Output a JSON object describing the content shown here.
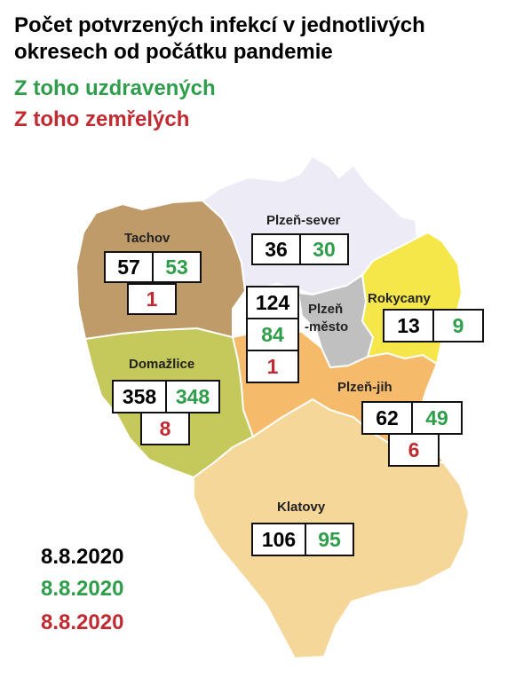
{
  "title_line1": "Počet potvrzených infekcí v jednotlivých",
  "title_line2": "okresech od počátku pandemie",
  "legend_recovered": "Z toho uzdravených",
  "legend_deaths": "Z toho zemřelých",
  "colors": {
    "confirmed": "#000000",
    "recovered": "#2e9e4b",
    "deaths": "#c12a30",
    "tachov": "#bf9b6a",
    "domazlice": "#c5c85a",
    "plzen_sever": "#ecebf6",
    "plzen_mesto": "#c0c0c0",
    "rokycany": "#f5e74a",
    "plzen_jih": "#f5bb6b",
    "klatovy": "#f6d79a"
  },
  "districts": {
    "tachov": {
      "name": "Tachov",
      "confirmed": "57",
      "recovered": "53",
      "deaths": "1"
    },
    "plzen_sever": {
      "name": "Plzeň-sever",
      "confirmed": "36",
      "recovered": "30"
    },
    "plzen_mesto": {
      "name_line1": "Plzeň",
      "name_line2": "-město",
      "confirmed": "124",
      "recovered": "84",
      "deaths": "1"
    },
    "rokycany": {
      "name": "Rokycany",
      "confirmed": "13",
      "recovered": "9"
    },
    "domazlice": {
      "name": "Domažlice",
      "confirmed": "358",
      "recovered": "348",
      "deaths": "8"
    },
    "plzen_jih": {
      "name": "Plzeň-jih",
      "confirmed": "62",
      "recovered": "49",
      "deaths": "6"
    },
    "klatovy": {
      "name": "Klatovy",
      "confirmed": "106",
      "recovered": "95"
    }
  },
  "dates": {
    "confirmed": "8.8.2020",
    "recovered": "8.8.2020",
    "deaths": "8.8.2020"
  }
}
